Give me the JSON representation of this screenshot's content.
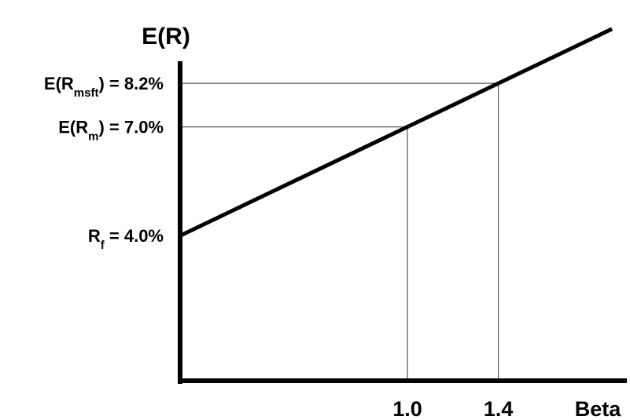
{
  "chart_data": {
    "type": "line",
    "ylabel": "E(R)",
    "xlabel": "Beta",
    "xlim": [
      0,
      1.9
    ],
    "ylim": [
      0,
      10.0
    ],
    "series": [
      {
        "x": [
          0,
          1.9
        ],
        "y": [
          4.0,
          9.7
        ]
      }
    ],
    "reference_points": [
      {
        "x": 1.0,
        "y": 7.0
      },
      {
        "x": 1.4,
        "y": 8.2
      }
    ],
    "x_tick_labels": [
      {
        "value": 1.0,
        "text": "1.0"
      },
      {
        "value": 1.4,
        "text": "1.4"
      }
    ],
    "y_labels": [
      {
        "value": 8.2,
        "prefix": "E(R",
        "sub": "msft",
        "suffix": ") = 8.2%"
      },
      {
        "value": 7.0,
        "prefix": "E(R",
        "sub": "m",
        "suffix": ") = 7.0%"
      },
      {
        "value": 4.0,
        "prefix": "R",
        "sub": "f",
        "suffix": "  = 4.0%"
      }
    ],
    "line_color": "#000000",
    "guide_color": "#555555"
  }
}
